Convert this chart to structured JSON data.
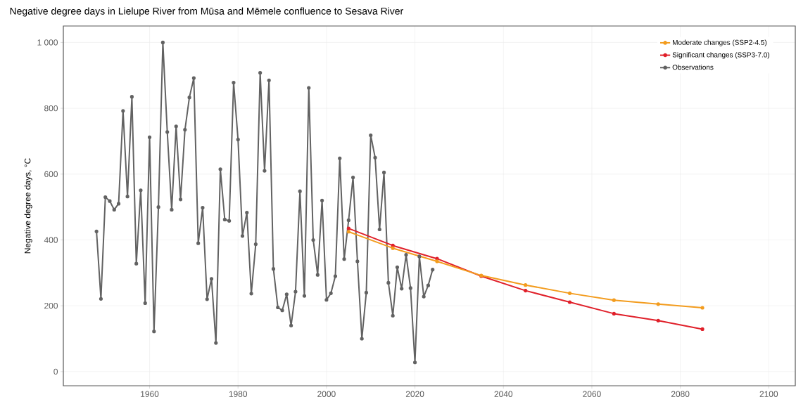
{
  "chart_data": {
    "type": "line",
    "title": "Negative degree days in Lielupe River from Mūsa and Mēmele confluence to Sesava River",
    "ylabel": "Negative degree days, °C",
    "xlim": [
      1940.5,
      2106
    ],
    "xticks": [
      1960,
      1980,
      2000,
      2020,
      2040,
      2060,
      2080,
      2100
    ],
    "ylim": [
      -43,
      1050
    ],
    "yticks": [
      0,
      200,
      400,
      600,
      800,
      {
        "value": 1000,
        "label": "1 000"
      }
    ],
    "grid": true,
    "legend": "top right",
    "marker": "circle",
    "line_style": "solid",
    "series": [
      {
        "name": "Moderate changes (SSP2-4.5)",
        "color": "#f39c1e",
        "x": [
          2005,
          2015,
          2025,
          2035,
          2045,
          2055,
          2065,
          2075,
          2085
        ],
        "values": [
          425,
          375,
          335,
          292,
          263,
          238,
          217,
          205,
          194
        ]
      },
      {
        "name": "Significant changes (SSP3-7.0)",
        "color": "#e0202a",
        "x": [
          2005,
          2015,
          2025,
          2035,
          2045,
          2055,
          2065,
          2075,
          2085
        ],
        "values": [
          435,
          383,
          343,
          290,
          246,
          211,
          176,
          155,
          129
        ]
      },
      {
        "name": "Observations",
        "color": "#626262",
        "x": [
          1948,
          1949,
          1950,
          1951,
          1952,
          1953,
          1954,
          1955,
          1956,
          1957,
          1958,
          1959,
          1960,
          1961,
          1962,
          1963,
          1964,
          1965,
          1966,
          1967,
          1968,
          1969,
          1970,
          1971,
          1972,
          1973,
          1974,
          1975,
          1976,
          1977,
          1978,
          1979,
          1980,
          1981,
          1982,
          1983,
          1984,
          1985,
          1986,
          1987,
          1988,
          1989,
          1990,
          1991,
          1992,
          1993,
          1994,
          1995,
          1996,
          1997,
          1998,
          1999,
          2000,
          2001,
          2002,
          2003,
          2004,
          2005,
          2006,
          2007,
          2008,
          2009,
          2010,
          2011,
          2012,
          2013,
          2014,
          2015,
          2016,
          2017,
          2018,
          2019,
          2020,
          2021,
          2022,
          2023,
          2024
        ],
        "values": [
          426,
          221,
          530,
          518,
          492,
          510,
          792,
          532,
          835,
          328,
          551,
          208,
          712,
          122,
          500,
          1000,
          728,
          492,
          745,
          523,
          735,
          833,
          892,
          390,
          498,
          220,
          282,
          87,
          615,
          462,
          458,
          878,
          705,
          412,
          483,
          237,
          387,
          908,
          610,
          885,
          312,
          195,
          186,
          235,
          140,
          243,
          548,
          230,
          862,
          400,
          294,
          520,
          218,
          238,
          290,
          648,
          342,
          460,
          590,
          335,
          100,
          240,
          718,
          650,
          432,
          605,
          270,
          170,
          317,
          252,
          355,
          254,
          28,
          350,
          228,
          262,
          310
        ]
      }
    ]
  }
}
